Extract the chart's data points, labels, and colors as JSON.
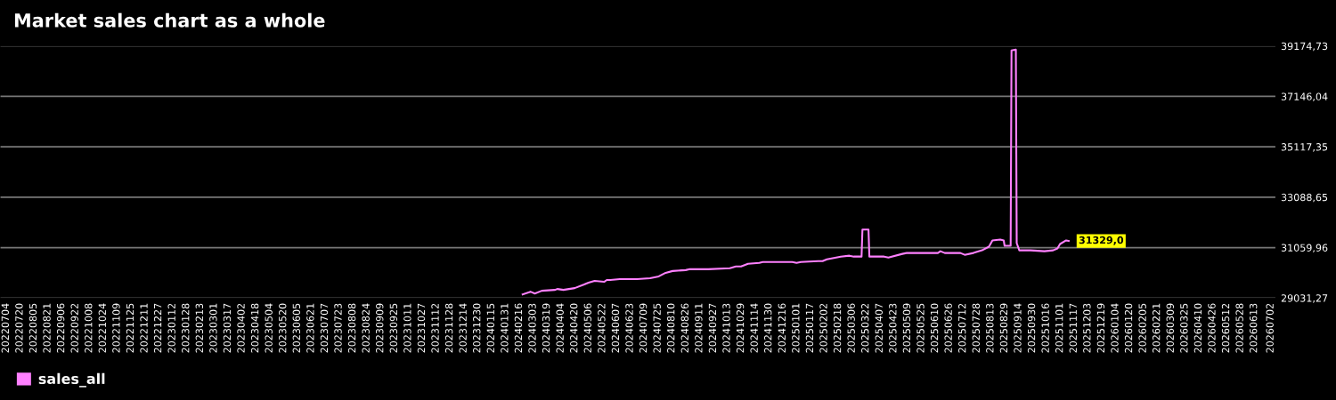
{
  "chart_data": {
    "type": "line",
    "title": "Market sales chart as a whole",
    "series": [
      {
        "name": "sales_all",
        "color": "#ff80ff",
        "x": [
          "2024-02-20",
          "2024-02-29",
          "2024-03-05",
          "2024-03-13",
          "2024-03-28",
          "2024-03-31",
          "2024-04-07",
          "2024-04-20",
          "2024-05-01",
          "2024-05-06",
          "2024-05-13",
          "2024-05-24",
          "2024-05-27",
          "2024-05-31",
          "2024-06-11",
          "2024-07-01",
          "2024-07-16",
          "2024-07-26",
          "2024-08-03",
          "2024-08-11",
          "2024-08-26",
          "2024-08-31",
          "2024-09-21",
          "2024-10-16",
          "2024-10-23",
          "2024-10-29",
          "2024-11-06",
          "2024-11-19",
          "2024-11-23",
          "2024-12-27",
          "2025-01-01",
          "2025-01-06",
          "2025-01-26",
          "2025-01-31",
          "2025-02-05",
          "2025-02-21",
          "2025-03-03",
          "2025-03-08",
          "2025-03-17",
          "2025-03-18",
          "2025-03-25",
          "2025-03-26",
          "2025-04-12",
          "2025-04-17",
          "2025-05-03",
          "2025-05-08",
          "2025-06-13",
          "2025-06-16",
          "2025-06-21",
          "2025-07-09",
          "2025-07-14",
          "2025-07-24",
          "2025-08-03",
          "2025-08-11",
          "2025-08-15",
          "2025-08-24",
          "2025-08-28",
          "2025-08-29",
          "2025-09-05",
          "2025-09-06",
          "2025-09-11",
          "2025-09-12",
          "2025-09-15",
          "2025-09-28",
          "2025-10-14",
          "2025-10-24",
          "2025-10-29",
          "2025-11-01",
          "2025-11-08",
          "2025-11-11"
        ],
        "values": [
          29176,
          29285,
          29212,
          29321,
          29357,
          29394,
          29357,
          29430,
          29575,
          29647,
          29720,
          29683,
          29756,
          29756,
          29792,
          29792,
          29828,
          29901,
          30046,
          30118,
          30154,
          30191,
          30191,
          30227,
          30299,
          30299,
          30408,
          30444,
          30480,
          30480,
          30444,
          30480,
          30517,
          30517,
          30589,
          30698,
          30734,
          30698,
          30698,
          31785,
          31785,
          30698,
          30698,
          30662,
          30807,
          30843,
          30843,
          30915,
          30843,
          30843,
          30770,
          30843,
          30951,
          31096,
          31350,
          31386,
          31350,
          31133,
          31133,
          38994,
          39031,
          31241,
          30951,
          30951,
          30915,
          30951,
          31024,
          31205,
          31350,
          31329
        ]
      }
    ],
    "xlim": [
      "2022-06-27",
      "2026-07-08"
    ],
    "xticks": [
      {
        "value": "2022-07-04",
        "label": "20220704"
      },
      {
        "value": "2022-07-20",
        "label": "20220720"
      },
      {
        "value": "2022-08-05",
        "label": "20220805"
      },
      {
        "value": "2022-08-21",
        "label": "20220821"
      },
      {
        "value": "2022-09-06",
        "label": "20220906"
      },
      {
        "value": "2022-09-22",
        "label": "20220922"
      },
      {
        "value": "2022-10-08",
        "label": "20221008"
      },
      {
        "value": "2022-10-24",
        "label": "20221024"
      },
      {
        "value": "2022-11-09",
        "label": "20221109"
      },
      {
        "value": "2022-11-25",
        "label": "20221125"
      },
      {
        "value": "2022-12-11",
        "label": "20221211"
      },
      {
        "value": "2022-12-27",
        "label": "20221227"
      },
      {
        "value": "2023-01-12",
        "label": "20230112"
      },
      {
        "value": "2023-01-28",
        "label": "20230128"
      },
      {
        "value": "2023-02-13",
        "label": "20230213"
      },
      {
        "value": "2023-03-01",
        "label": "20230301"
      },
      {
        "value": "2023-03-17",
        "label": "20230317"
      },
      {
        "value": "2023-04-02",
        "label": "20230402"
      },
      {
        "value": "2023-04-18",
        "label": "20230418"
      },
      {
        "value": "2023-05-04",
        "label": "20230504"
      },
      {
        "value": "2023-05-20",
        "label": "20230520"
      },
      {
        "value": "2023-06-05",
        "label": "20230605"
      },
      {
        "value": "2023-06-21",
        "label": "20230621"
      },
      {
        "value": "2023-07-07",
        "label": "20230707"
      },
      {
        "value": "2023-07-23",
        "label": "20230723"
      },
      {
        "value": "2023-08-08",
        "label": "20230808"
      },
      {
        "value": "2023-08-24",
        "label": "20230824"
      },
      {
        "value": "2023-09-09",
        "label": "20230909"
      },
      {
        "value": "2023-09-25",
        "label": "20230925"
      },
      {
        "value": "2023-10-11",
        "label": "20231011"
      },
      {
        "value": "2023-10-27",
        "label": "20231027"
      },
      {
        "value": "2023-11-12",
        "label": "20231112"
      },
      {
        "value": "2023-11-28",
        "label": "20231128"
      },
      {
        "value": "2023-12-14",
        "label": "20231214"
      },
      {
        "value": "2023-12-30",
        "label": "20231230"
      },
      {
        "value": "2024-01-15",
        "label": "20240115"
      },
      {
        "value": "2024-01-31",
        "label": "20240131"
      },
      {
        "value": "2024-02-16",
        "label": "20240216"
      },
      {
        "value": "2024-03-03",
        "label": "20240303"
      },
      {
        "value": "2024-03-19",
        "label": "20240319"
      },
      {
        "value": "2024-04-04",
        "label": "20240404"
      },
      {
        "value": "2024-04-20",
        "label": "20240420"
      },
      {
        "value": "2024-05-06",
        "label": "20240506"
      },
      {
        "value": "2024-05-22",
        "label": "20240522"
      },
      {
        "value": "2024-06-07",
        "label": "20240607"
      },
      {
        "value": "2024-06-23",
        "label": "20240623"
      },
      {
        "value": "2024-07-09",
        "label": "20240709"
      },
      {
        "value": "2024-07-25",
        "label": "20240725"
      },
      {
        "value": "2024-08-10",
        "label": "20240810"
      },
      {
        "value": "2024-08-26",
        "label": "20240826"
      },
      {
        "value": "2024-09-11",
        "label": "20240911"
      },
      {
        "value": "2024-09-27",
        "label": "20240927"
      },
      {
        "value": "2024-10-13",
        "label": "20241013"
      },
      {
        "value": "2024-10-29",
        "label": "20241029"
      },
      {
        "value": "2024-11-14",
        "label": "20241114"
      },
      {
        "value": "2024-11-30",
        "label": "20241130"
      },
      {
        "value": "2024-12-16",
        "label": "20241216"
      },
      {
        "value": "2025-01-01",
        "label": "20250101"
      },
      {
        "value": "2025-01-17",
        "label": "20250117"
      },
      {
        "value": "2025-02-02",
        "label": "20250202"
      },
      {
        "value": "2025-02-18",
        "label": "20250218"
      },
      {
        "value": "2025-03-06",
        "label": "20250306"
      },
      {
        "value": "2025-03-22",
        "label": "20250322"
      },
      {
        "value": "2025-04-07",
        "label": "20250407"
      },
      {
        "value": "2025-04-23",
        "label": "20250423"
      },
      {
        "value": "2025-05-09",
        "label": "20250509"
      },
      {
        "value": "2025-05-25",
        "label": "20250525"
      },
      {
        "value": "2025-06-10",
        "label": "20250610"
      },
      {
        "value": "2025-06-26",
        "label": "20250626"
      },
      {
        "value": "2025-07-12",
        "label": "20250712"
      },
      {
        "value": "2025-07-28",
        "label": "20250728"
      },
      {
        "value": "2025-08-13",
        "label": "20250813"
      },
      {
        "value": "2025-08-29",
        "label": "20250829"
      },
      {
        "value": "2025-09-14",
        "label": "20250914"
      },
      {
        "value": "2025-09-30",
        "label": "20250930"
      },
      {
        "value": "2025-10-16",
        "label": "20251016"
      },
      {
        "value": "2025-11-01",
        "label": "20251101"
      },
      {
        "value": "2025-11-17",
        "label": "20251117"
      },
      {
        "value": "2025-12-03",
        "label": "20251203"
      },
      {
        "value": "2025-12-19",
        "label": "20251219"
      },
      {
        "value": "2026-01-04",
        "label": "20260104"
      },
      {
        "value": "2026-01-20",
        "label": "20260120"
      },
      {
        "value": "2026-02-05",
        "label": "20260205"
      },
      {
        "value": "2026-02-21",
        "label": "20260221"
      },
      {
        "value": "2026-03-09",
        "label": "20260309"
      },
      {
        "value": "2026-03-25",
        "label": "20260325"
      },
      {
        "value": "2026-04-10",
        "label": "20260410"
      },
      {
        "value": "2026-04-26",
        "label": "20260426"
      },
      {
        "value": "2026-05-12",
        "label": "20260512"
      },
      {
        "value": "2026-05-28",
        "label": "20260528"
      },
      {
        "value": "2026-06-13",
        "label": "20260613"
      },
      {
        "value": "2026-07-02",
        "label": "20260702"
      }
    ],
    "ylim": [
      29031.27,
      39174.73
    ],
    "yticks": [
      {
        "value": 29031.27,
        "label": "29031,27"
      },
      {
        "value": 31059.96,
        "label": "31059,96"
      },
      {
        "value": 33088.65,
        "label": "33088,65"
      },
      {
        "value": 35117.35,
        "label": "35117,35"
      },
      {
        "value": 37146.04,
        "label": "37146,04"
      },
      {
        "value": 39174.73,
        "label": "39174,73"
      }
    ],
    "grid": "y",
    "legend": "bottom left",
    "annotations": [
      {
        "text": "31329,0",
        "x": "2025-11-11",
        "y": 31329
      }
    ]
  }
}
